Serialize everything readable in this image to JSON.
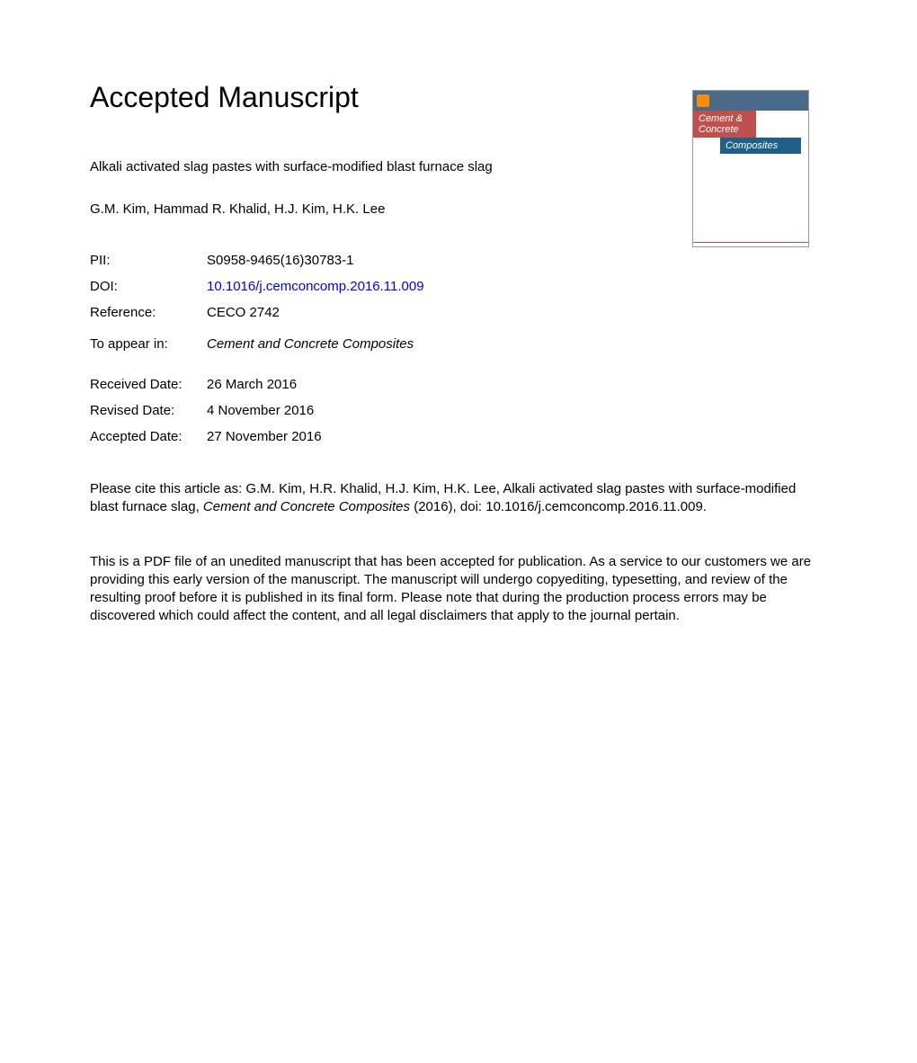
{
  "header": "Accepted Manuscript",
  "article_title": "Alkali activated slag pastes with surface-modified blast furnace slag",
  "authors": "G.M. Kim, Hammad R. Khalid, H.J. Kim, H.K. Lee",
  "meta": {
    "pii_label": "PII:",
    "pii_value": "S0958-9465(16)30783-1",
    "doi_label": "DOI:",
    "doi_value": "10.1016/j.cemconcomp.2016.11.009",
    "reference_label": "Reference:",
    "reference_value": "CECO 2742",
    "appear_label": "To appear in:",
    "appear_value": "Cement and Concrete Composites",
    "received_label": "Received Date:",
    "received_value": "26 March 2016",
    "revised_label": "Revised Date:",
    "revised_value": "4 November 2016",
    "accepted_label": "Accepted Date:",
    "accepted_value": "27 November 2016"
  },
  "citation": {
    "prefix": "Please cite this article as: G.M. Kim, H.R. Khalid, H.J. Kim, H.K. Lee, Alkali activated slag pastes with surface-modified blast furnace slag, ",
    "journal": "Cement and Concrete Composites",
    "suffix": " (2016), doi: 10.1016/j.cemconcomp.2016.11.009."
  },
  "disclaimer": "This is a PDF file of an unedited manuscript that has been accepted for publication. As a service to our customers we are providing this early version of the manuscript. The manuscript will undergo copyediting, typesetting, and review of the resulting proof before it is published in its final form. Please note that during the production process errors may be discovered which could affect the content, and all legal disclaimers that apply to the journal pertain.",
  "cover": {
    "title_line1": "Cement &",
    "title_line2": "Concrete",
    "title_line3": "Composites"
  },
  "colors": {
    "text": "#000000",
    "link": "#0000ee",
    "cover_red": "#c0504d",
    "cover_blue": "#1f6089",
    "cover_topbar": "#4a6a8a",
    "cover_border": "#999999",
    "background": "#ffffff"
  },
  "typography": {
    "header_fontsize": 32,
    "body_fontsize": 15,
    "font_family": "Arial"
  }
}
